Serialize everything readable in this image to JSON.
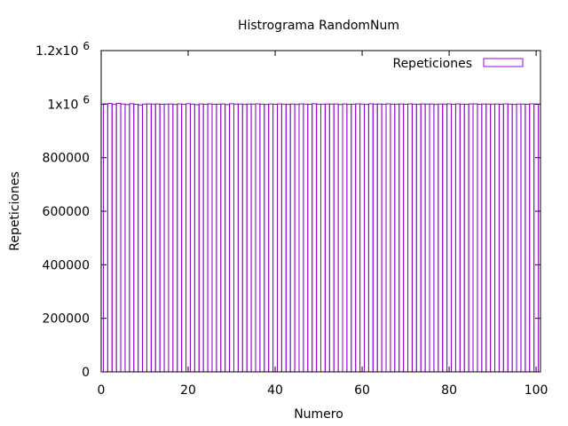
{
  "chart_data": {
    "type": "bar",
    "title": "Histrograma RandomNum",
    "xlabel": "Numero",
    "ylabel": "Repeticiones",
    "xlim": [
      0,
      101
    ],
    "ylim": [
      0,
      1200000
    ],
    "x_ticks": [
      {
        "value": 0,
        "label": "0"
      },
      {
        "value": 20,
        "label": "20"
      },
      {
        "value": 40,
        "label": "40"
      },
      {
        "value": 60,
        "label": "60"
      },
      {
        "value": 80,
        "label": "80"
      },
      {
        "value": 100,
        "label": "100"
      }
    ],
    "y_ticks": [
      {
        "value": 0,
        "label": "0",
        "exp": ""
      },
      {
        "value": 200000,
        "label": "200000",
        "exp": ""
      },
      {
        "value": 400000,
        "label": "400000",
        "exp": ""
      },
      {
        "value": 600000,
        "label": "600000",
        "exp": ""
      },
      {
        "value": 800000,
        "label": "800000",
        "exp": ""
      },
      {
        "value": 1000000,
        "label": "1x10",
        "exp": "6"
      },
      {
        "value": 1200000,
        "label": "1.2x10",
        "exp": "6"
      }
    ],
    "legend_position": "top-right",
    "grid": false,
    "bar_color": "#9400d3",
    "series": [
      {
        "name": "Repeticiones",
        "x": [
          1,
          2,
          3,
          4,
          5,
          6,
          7,
          8,
          9,
          10,
          11,
          12,
          13,
          14,
          15,
          16,
          17,
          18,
          19,
          20,
          21,
          22,
          23,
          24,
          25,
          26,
          27,
          28,
          29,
          30,
          31,
          32,
          33,
          34,
          35,
          36,
          37,
          38,
          39,
          40,
          41,
          42,
          43,
          44,
          45,
          46,
          47,
          48,
          49,
          50,
          51,
          52,
          53,
          54,
          55,
          56,
          57,
          58,
          59,
          60,
          61,
          62,
          63,
          64,
          65,
          66,
          67,
          68,
          69,
          70,
          71,
          72,
          73,
          74,
          75,
          76,
          77,
          78,
          79,
          80,
          81,
          82,
          83,
          84,
          85,
          86,
          87,
          88,
          89,
          90,
          91,
          92,
          93,
          94,
          95,
          96,
          97,
          98,
          99,
          100
        ],
        "values": [
          1000500,
          1002500,
          999000,
          1003000,
          1000500,
          998500,
          1001500,
          999500,
          997000,
          1000000,
          1001000,
          1000000,
          1000500,
          999500,
          1000000,
          1000500,
          999000,
          1000800,
          999200,
          1001500,
          1000000,
          998000,
          1000500,
          999500,
          1001000,
          999500,
          1000000,
          1000500,
          998500,
          1001500,
          999800,
          1000500,
          999000,
          1000500,
          999800,
          1001000,
          1000000,
          999000,
          1000500,
          999500,
          1000800,
          1000000,
          999200,
          1000500,
          999000,
          1001000,
          1000000,
          999500,
          1001500,
          1000000,
          999800,
          1000500,
          1000000,
          1000500,
          999000,
          1000800,
          999500,
          1000000,
          1001000,
          1000200,
          999000,
          1001200,
          1000000,
          1000500,
          999500,
          1001000,
          999800,
          1000000,
          1000500,
          999500,
          1001000,
          1000000,
          999500,
          1000800,
          1000000,
          1000500,
          999000,
          1000500,
          1000000,
          1000800,
          999500,
          1001000,
          1000000,
          999500,
          1000500,
          1001000,
          999200,
          1000500,
          1000000,
          999800,
          1000500,
          999500,
          1001000,
          1000200,
          999000,
          1000500,
          1000000,
          999500,
          1001000,
          1000000
        ]
      }
    ]
  }
}
